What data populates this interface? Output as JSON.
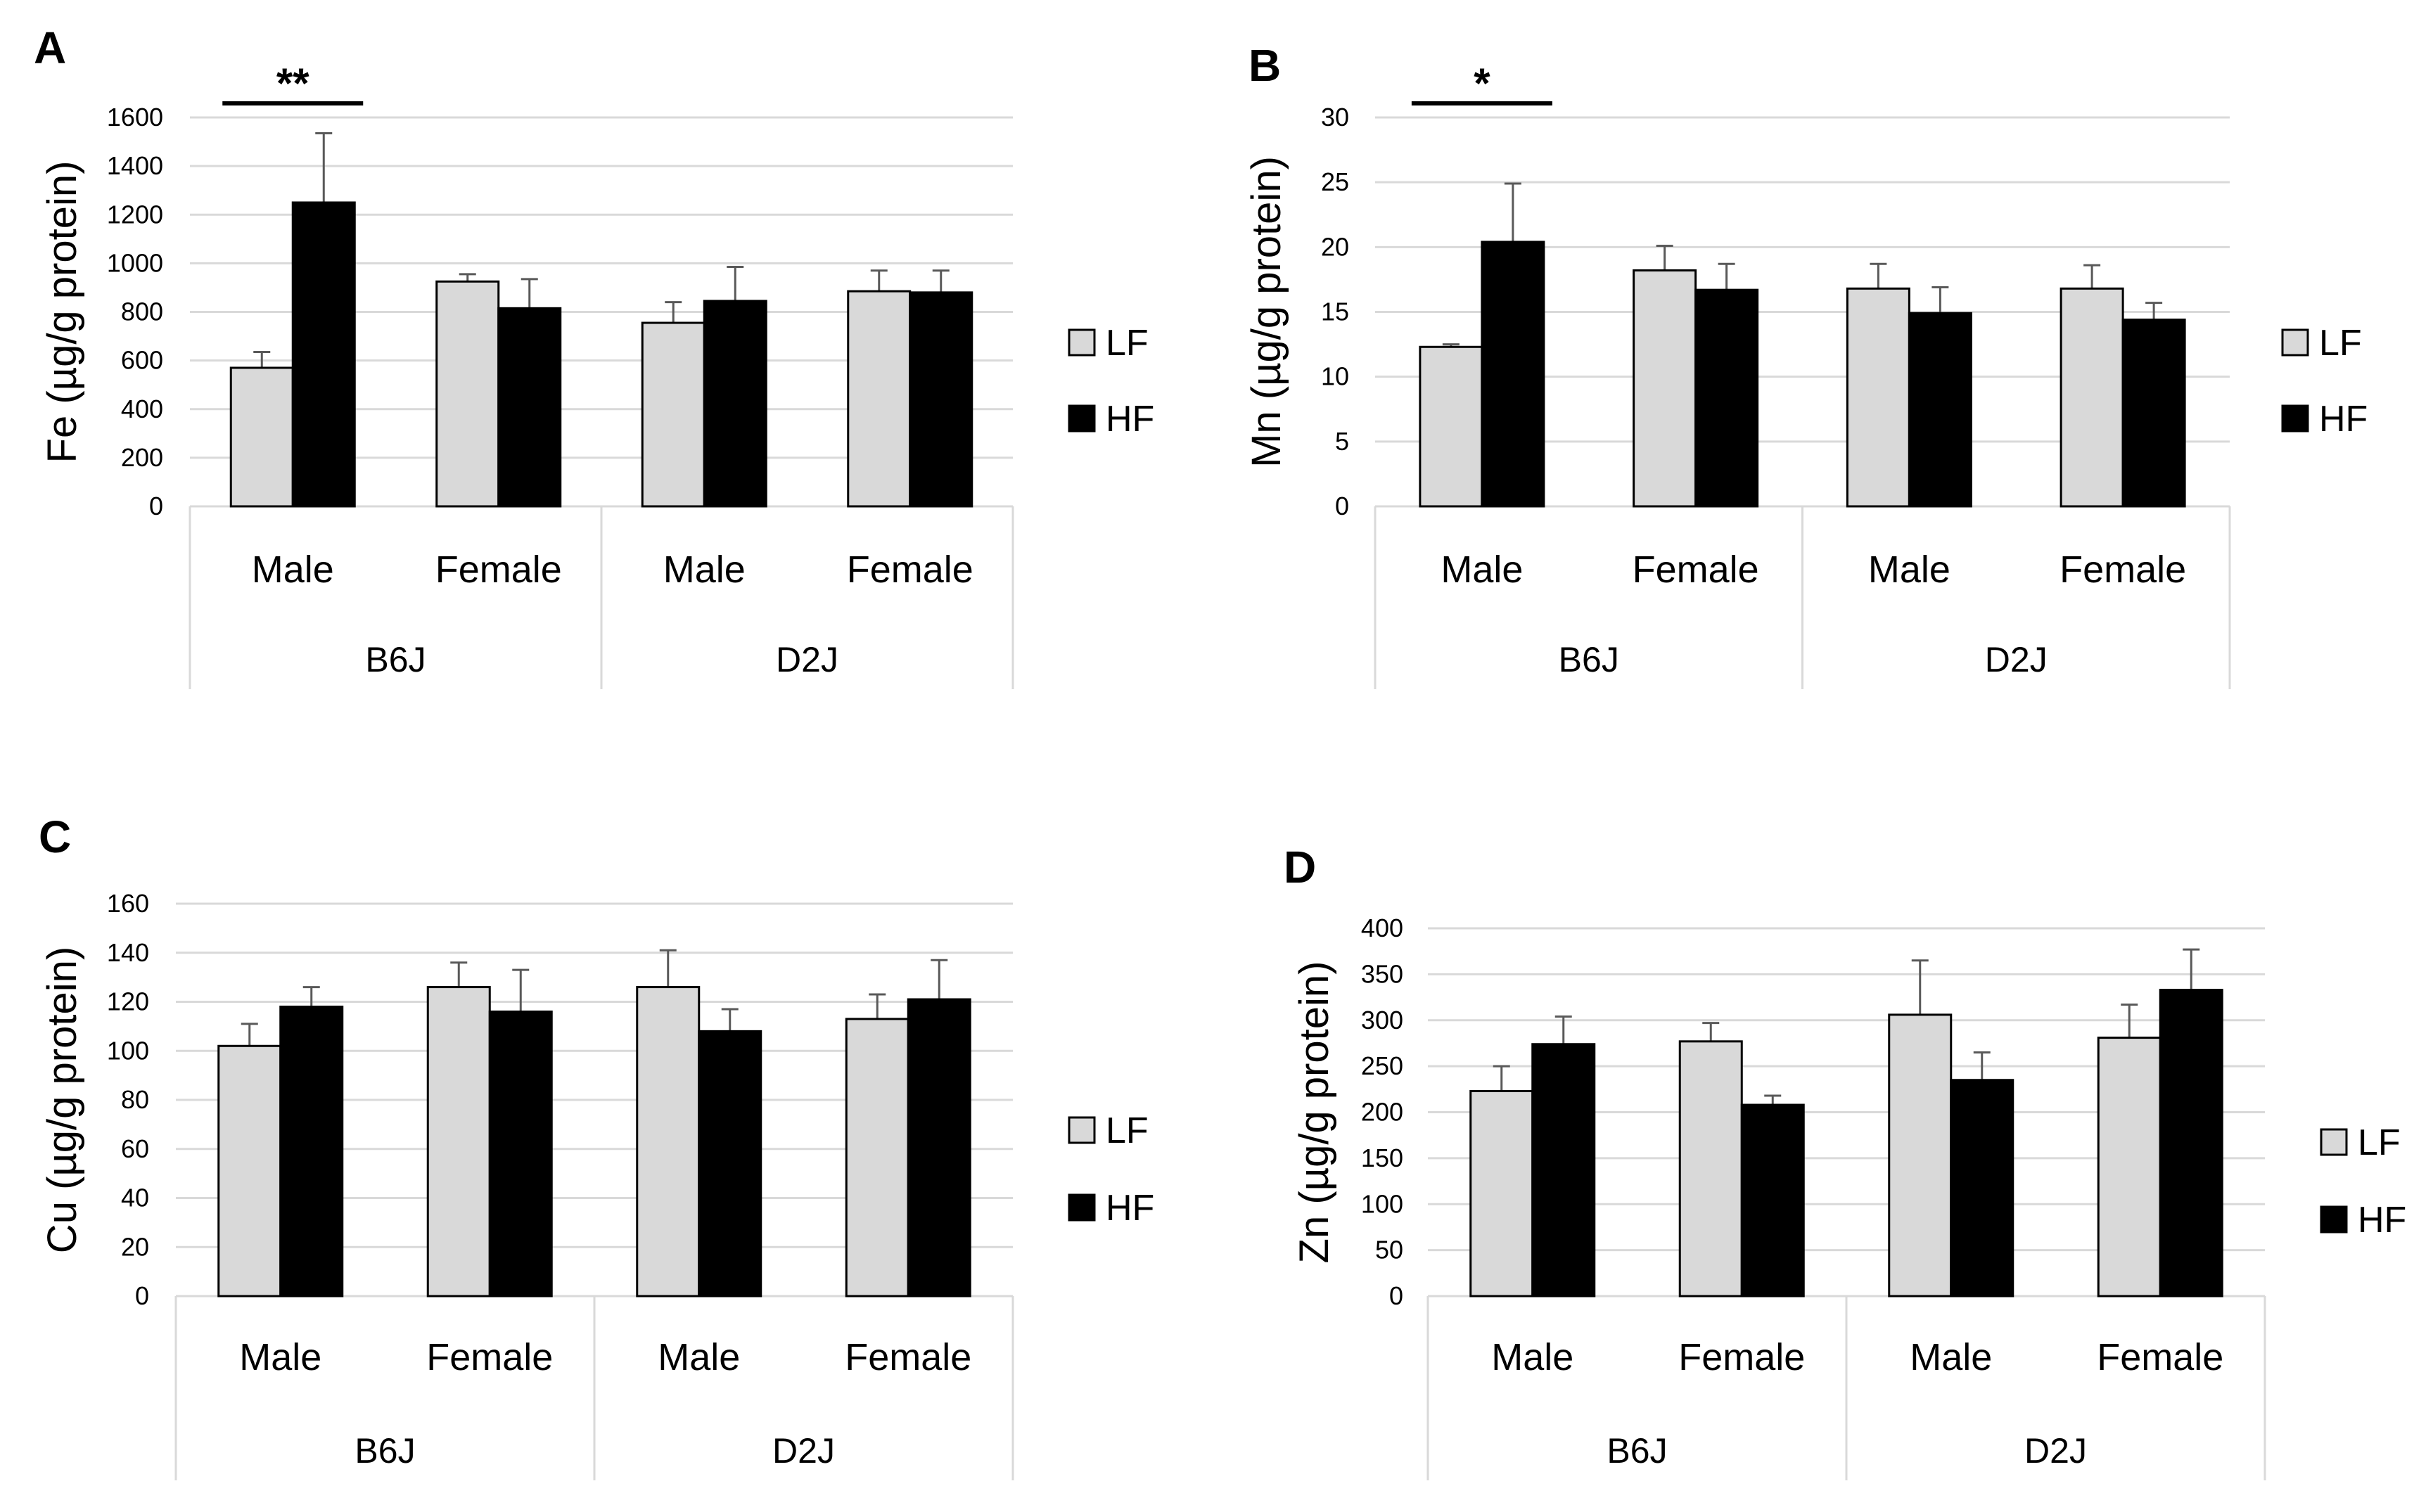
{
  "chart_data": [
    {
      "type": "bar",
      "panel": "A",
      "ylabel": "Fe (µg/g protein)",
      "ylim": [
        0,
        1600
      ],
      "yticks": [
        0,
        200,
        400,
        600,
        800,
        1000,
        1200,
        1400,
        1600
      ],
      "grid": true,
      "legend": "right",
      "groups": [
        {
          "label": "B6J",
          "categories": [
            "Male",
            "Female"
          ]
        },
        {
          "label": "D2J",
          "categories": [
            "Male",
            "Female"
          ]
        }
      ],
      "series": [
        {
          "name": "LF",
          "color": "#d9d9d9",
          "values": [
            570,
            925,
            755,
            885
          ],
          "errors": [
            65,
            30,
            85,
            85
          ]
        },
        {
          "name": "HF",
          "color": "#000000",
          "values": [
            1250,
            815,
            845,
            880
          ],
          "errors": [
            285,
            120,
            140,
            90
          ]
        }
      ],
      "significance": [
        {
          "category": 0,
          "label": "**"
        }
      ]
    },
    {
      "type": "bar",
      "panel": "B",
      "ylabel": "Mn (µg/g protein)",
      "ylim": [
        0,
        30
      ],
      "yticks": [
        0,
        5,
        10,
        15,
        20,
        25,
        30
      ],
      "grid": true,
      "legend": "right",
      "groups": [
        {
          "label": "B6J",
          "categories": [
            "Male",
            "Female"
          ]
        },
        {
          "label": "D2J",
          "categories": [
            "Male",
            "Female"
          ]
        }
      ],
      "series": [
        {
          "name": "LF",
          "color": "#d9d9d9",
          "values": [
            12.3,
            18.2,
            16.8,
            16.8
          ],
          "errors": [
            0.2,
            1.9,
            1.9,
            1.8
          ]
        },
        {
          "name": "HF",
          "color": "#000000",
          "values": [
            20.4,
            16.7,
            14.9,
            14.4
          ],
          "errors": [
            4.5,
            2.0,
            2.0,
            1.3
          ]
        }
      ],
      "significance": [
        {
          "category": 0,
          "label": "*"
        }
      ]
    },
    {
      "type": "bar",
      "panel": "C",
      "ylabel": "Cu (µg/g protein)",
      "ylim": [
        0,
        160
      ],
      "yticks": [
        0,
        20,
        40,
        60,
        80,
        100,
        120,
        140,
        160
      ],
      "grid": true,
      "legend": "right",
      "groups": [
        {
          "label": "B6J",
          "categories": [
            "Male",
            "Female"
          ]
        },
        {
          "label": "D2J",
          "categories": [
            "Male",
            "Female"
          ]
        }
      ],
      "series": [
        {
          "name": "LF",
          "color": "#d9d9d9",
          "values": [
            102,
            126,
            126,
            113
          ],
          "errors": [
            9,
            10,
            15,
            10
          ]
        },
        {
          "name": "HF",
          "color": "#000000",
          "values": [
            118,
            116,
            108,
            121
          ],
          "errors": [
            8,
            17,
            9,
            16
          ]
        }
      ],
      "significance": []
    },
    {
      "type": "bar",
      "panel": "D",
      "ylabel": "Zn (µg/g protein)",
      "ylim": [
        0,
        400
      ],
      "yticks": [
        0,
        50,
        100,
        150,
        200,
        250,
        300,
        350,
        400
      ],
      "grid": true,
      "legend": "right",
      "groups": [
        {
          "label": "B6J",
          "categories": [
            "Male",
            "Female"
          ]
        },
        {
          "label": "D2J",
          "categories": [
            "Male",
            "Female"
          ]
        }
      ],
      "series": [
        {
          "name": "LF",
          "color": "#d9d9d9",
          "values": [
            223,
            277,
            306,
            281
          ],
          "errors": [
            27,
            20,
            59,
            36
          ]
        },
        {
          "name": "HF",
          "color": "#000000",
          "values": [
            274,
            208,
            235,
            333
          ],
          "errors": [
            30,
            10,
            30,
            44
          ]
        }
      ],
      "significance": []
    }
  ]
}
